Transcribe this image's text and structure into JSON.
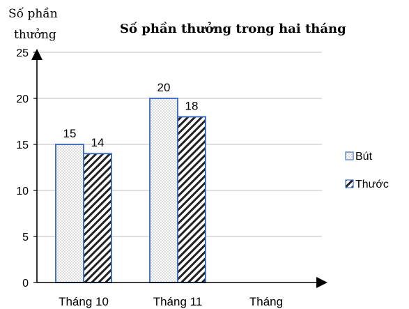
{
  "chart_data": {
    "type": "bar",
    "title": "Số phần thưởng trong hai tháng",
    "ylabel_line1": "Số phần",
    "ylabel_line2": "thưởng",
    "xlabel": "Tháng",
    "categories": [
      "Tháng 10",
      "Tháng 11"
    ],
    "series": [
      {
        "name": "Bút",
        "values": [
          15,
          20
        ],
        "pattern": "dots",
        "color": "#4472c4"
      },
      {
        "name": "Thước",
        "values": [
          14,
          18
        ],
        "pattern": "diagonal-stripes",
        "color": "#4472c4"
      }
    ],
    "ylim": [
      0,
      25
    ],
    "yticks": [
      "0",
      "5",
      "10",
      "15",
      "20",
      "25"
    ],
    "grid": true,
    "legend_position": "right",
    "data_labels": true
  }
}
